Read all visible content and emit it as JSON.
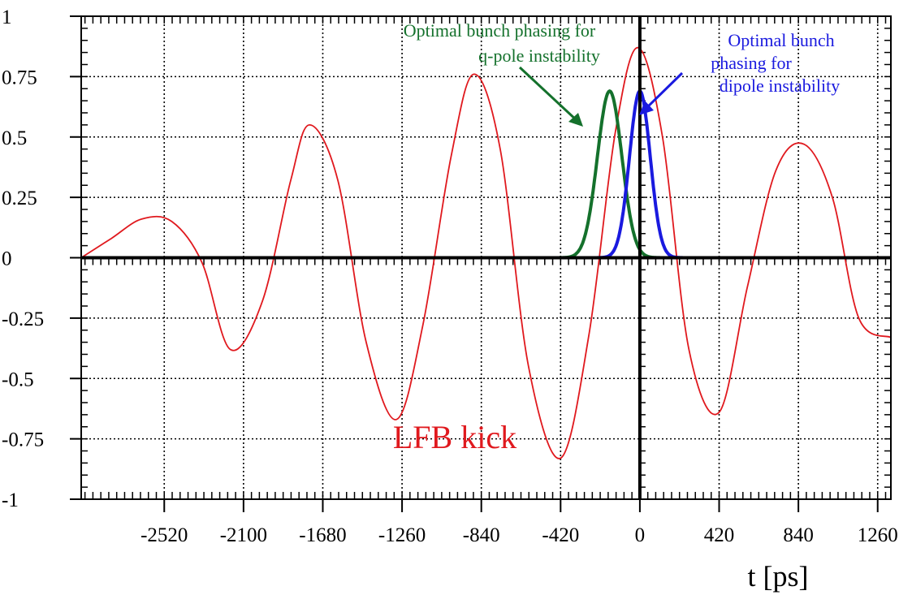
{
  "chart_data": {
    "type": "line",
    "xlabel": "t [ps]",
    "ylabel": "",
    "xlim": [
      -2960,
      1330
    ],
    "ylim": [
      -1,
      1
    ],
    "x_ticks": [
      -2520,
      -2100,
      -1680,
      -1260,
      -840,
      -420,
      0,
      420,
      840,
      1260
    ],
    "x_tick_labels": [
      "-2520",
      "-2100",
      "-1680",
      "-1260",
      "-840",
      "-420",
      "0",
      "420",
      "840",
      "1260"
    ],
    "y_ticks": [
      1,
      0.75,
      0.5,
      0.25,
      0,
      -0.25,
      -0.5,
      -0.75,
      -1
    ],
    "y_tick_labels": [
      "1",
      "0.75",
      "0.5",
      "0.25",
      "0",
      "-0.25",
      "-0.5",
      "-0.75",
      "-1"
    ],
    "grid": true,
    "series": [
      {
        "name": "LFB kick",
        "color": "#e0191e",
        "x": [
          -2960,
          -2800,
          -2640,
          -2480,
          -2320,
          -2170,
          -2000,
          -1850,
          -1750,
          -1600,
          -1450,
          -1290,
          -1150,
          -1000,
          -880,
          -740,
          -590,
          -420,
          -270,
          -130,
          -10,
          120,
          260,
          420,
          570,
          720,
          870,
          1020,
          1160,
          1330
        ],
        "y": [
          0,
          0.08,
          0.16,
          0.15,
          -0.02,
          -0.38,
          -0.18,
          0.32,
          0.55,
          0.32,
          -0.35,
          -0.67,
          -0.28,
          0.42,
          0.76,
          0.45,
          -0.45,
          -0.83,
          -0.32,
          0.52,
          0.87,
          0.5,
          -0.38,
          -0.64,
          -0.12,
          0.36,
          0.47,
          0.25,
          -0.25,
          -0.33
        ]
      },
      {
        "name": "Optimal bunch phasing for q-pole instability",
        "color": "#14712c",
        "center": -160,
        "sigma": 65,
        "amplitude": 0.69,
        "x_range": [
          -560,
          240
        ]
      },
      {
        "name": "Optimal bunch phasing for dipole instability",
        "color": "#1a1adf",
        "center": 0,
        "sigma": 55,
        "amplitude": 0.69,
        "x_range": [
          -420,
          400
        ]
      }
    ],
    "annotations": [
      {
        "text": "Optimal bunch phasing for",
        "color": "#14712c"
      },
      {
        "text": "q-pole instability",
        "color": "#14712c"
      },
      {
        "text": "Optimal bunch",
        "color": "#1a1adf"
      },
      {
        "text": "phasing for",
        "color": "#1a1adf"
      },
      {
        "text": "dipole instability",
        "color": "#1a1adf"
      },
      {
        "text": "LFB kick",
        "color": "#e0191e"
      }
    ]
  }
}
